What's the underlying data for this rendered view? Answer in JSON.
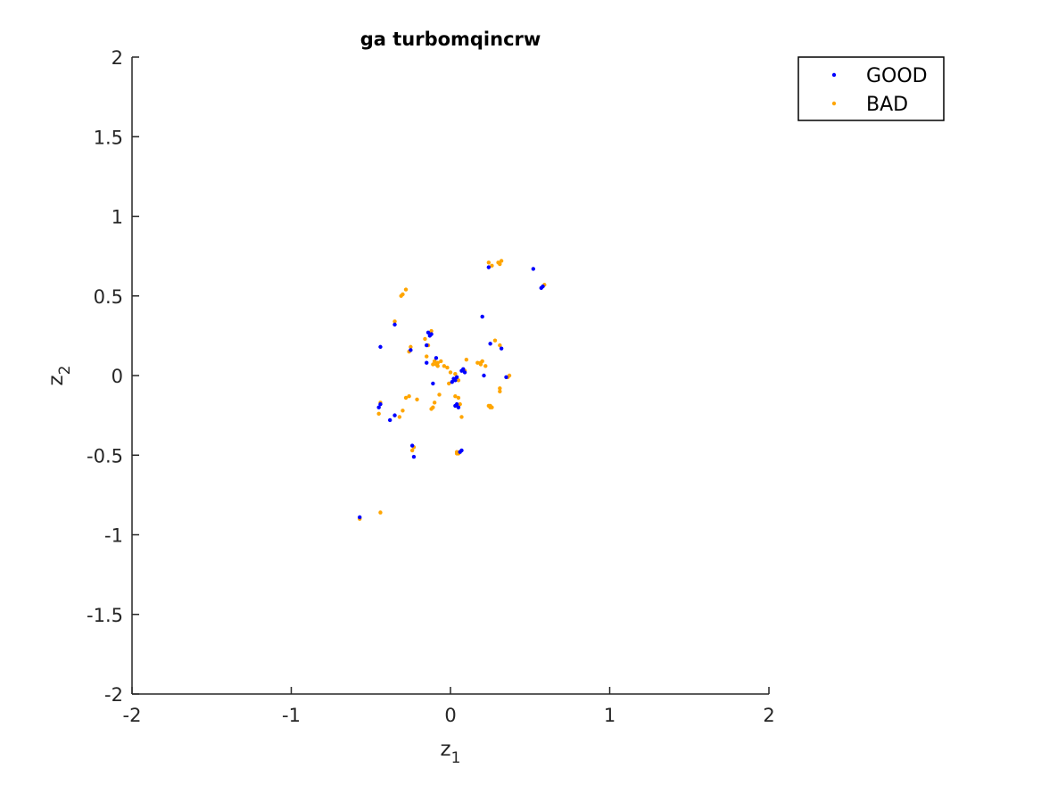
{
  "chart_data": {
    "type": "scatter",
    "title": "ga turbomqincrw",
    "xlabel": {
      "base": "z",
      "sub": "1"
    },
    "ylabel": {
      "base": "z",
      "sub": "2"
    },
    "xlim": [
      -2,
      2
    ],
    "ylim": [
      -2,
      2
    ],
    "xticks": [
      -2,
      -1,
      0,
      1,
      2
    ],
    "yticks": [
      -2,
      -1.5,
      -1,
      -0.5,
      0,
      0.5,
      1,
      1.5,
      2
    ],
    "xtick_labels": [
      "-2",
      "-1",
      "0",
      "1",
      "2"
    ],
    "ytick_labels": [
      "-2",
      "-1.5",
      "-1",
      "-0.5",
      "0",
      "0.5",
      "1",
      "1.5",
      "2"
    ],
    "grid": false,
    "legend_position": "top-right",
    "series": [
      {
        "name": "GOOD",
        "color": "#0000ff",
        "x": [
          0.24,
          0.52,
          0.57,
          0.58,
          0.2,
          -0.35,
          -0.44,
          -0.14,
          -0.12,
          -0.13,
          -0.15,
          -0.25,
          -0.09,
          -0.15,
          -0.11,
          0.02,
          0.03,
          0.04,
          0.07,
          0.08,
          0.09,
          0.25,
          0.32,
          0.21,
          0.35,
          0.04,
          0.05,
          0.03,
          -0.44,
          -0.45,
          -0.35,
          -0.38,
          -0.24,
          -0.23,
          0.06,
          0.07,
          -0.57,
          0.01
        ],
        "y": [
          0.68,
          0.67,
          0.55,
          0.56,
          0.37,
          0.32,
          0.18,
          0.27,
          0.26,
          0.25,
          0.08,
          0.16,
          0.11,
          0.19,
          -0.05,
          -0.02,
          -0.03,
          -0.01,
          0.03,
          0.04,
          0.02,
          0.2,
          0.17,
          0.0,
          -0.01,
          -0.18,
          -0.2,
          -0.19,
          -0.18,
          -0.2,
          -0.25,
          -0.28,
          -0.44,
          -0.51,
          -0.48,
          -0.47,
          -0.89,
          -0.04
        ]
      },
      {
        "name": "BAD",
        "color": "#ffa500",
        "x": [
          0.24,
          0.26,
          0.3,
          0.31,
          0.32,
          0.59,
          -0.28,
          -0.3,
          -0.31,
          -0.35,
          -0.12,
          -0.16,
          -0.14,
          -0.25,
          -0.26,
          -0.1,
          -0.09,
          -0.11,
          -0.15,
          -0.08,
          -0.08,
          -0.06,
          -0.04,
          -0.02,
          0.0,
          0.03,
          0.05,
          0.1,
          0.17,
          0.19,
          0.2,
          0.22,
          0.28,
          0.31,
          0.36,
          0.37,
          0.31,
          0.31,
          0.24,
          0.25,
          -0.26,
          -0.28,
          -0.21,
          -0.3,
          -0.32,
          -0.45,
          -0.44,
          -0.11,
          -0.12,
          -0.1,
          -0.07,
          -0.01,
          0.03,
          0.05,
          0.06,
          0.07,
          0.04,
          -0.23,
          -0.24,
          0.04,
          0.05,
          -0.44,
          -0.57,
          0.25,
          0.26,
          0.19,
          0.09
        ],
        "y": [
          0.71,
          0.69,
          0.71,
          0.7,
          0.72,
          0.57,
          0.54,
          0.51,
          0.5,
          0.34,
          0.28,
          0.23,
          0.19,
          0.18,
          0.15,
          0.09,
          0.07,
          0.07,
          0.12,
          0.06,
          0.08,
          0.09,
          0.06,
          0.05,
          0.02,
          0.01,
          -0.03,
          0.1,
          0.08,
          0.07,
          0.09,
          0.06,
          0.22,
          0.19,
          -0.01,
          0.0,
          -0.08,
          -0.1,
          -0.19,
          -0.2,
          -0.13,
          -0.14,
          -0.15,
          -0.22,
          -0.26,
          -0.24,
          -0.17,
          -0.2,
          -0.21,
          -0.17,
          -0.12,
          -0.05,
          -0.13,
          -0.14,
          -0.18,
          -0.26,
          -0.49,
          -0.45,
          -0.47,
          -0.48,
          -0.49,
          -0.86,
          -0.9,
          -0.19,
          -0.2,
          0.08,
          0.03
        ]
      }
    ]
  }
}
